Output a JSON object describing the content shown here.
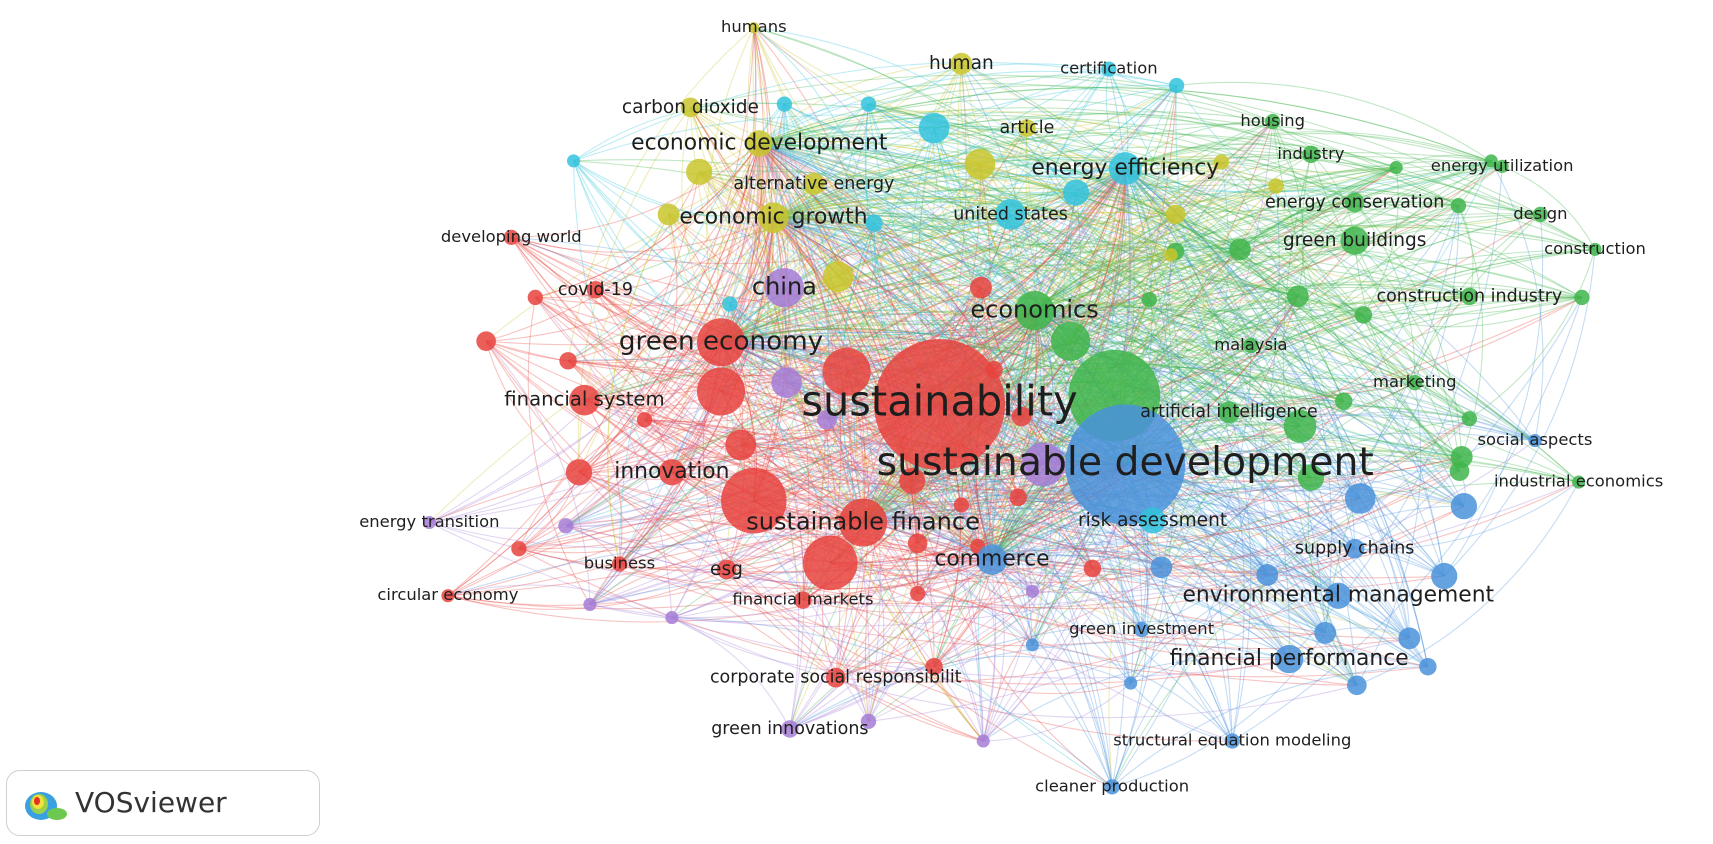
{
  "app": "VOSviewer",
  "nodes": [
    {
      "label": "humans",
      "color": "#c9c52b"
    },
    {
      "label": "human",
      "color": "#c9c52b"
    },
    {
      "label": "certification",
      "color": "#33c3dd"
    },
    {
      "label": "carbon dioxide",
      "color": "#c9c52b"
    },
    {
      "label": "economic development",
      "color": "#c9c52b"
    },
    {
      "label": "article",
      "color": "#c9c52b"
    },
    {
      "label": "housing",
      "color": "#3fb54b"
    },
    {
      "label": "industry",
      "color": "#3fb54b"
    },
    {
      "label": "energy efficiency",
      "color": "#33c3dd"
    },
    {
      "label": "energy utilization",
      "color": "#3fb54b"
    },
    {
      "label": "alternative energy",
      "color": "#c9c52b"
    },
    {
      "label": "united states",
      "color": "#33c3dd"
    },
    {
      "label": "energy conservation",
      "color": "#3fb54b"
    },
    {
      "label": "design",
      "color": "#3fb54b"
    },
    {
      "label": "economic growth",
      "color": "#c9c52b"
    },
    {
      "label": "developing world",
      "color": "#e8433e"
    },
    {
      "label": "green buildings",
      "color": "#3fb54b"
    },
    {
      "label": "construction",
      "color": "#3fb54b"
    },
    {
      "label": "covid-19",
      "color": "#e8433e"
    },
    {
      "label": "china",
      "color": "#a47dd6"
    },
    {
      "label": "construction industry",
      "color": "#3fb54b"
    },
    {
      "label": "economics",
      "color": "#3fb54b"
    },
    {
      "label": "green economy",
      "color": "#e8433e"
    },
    {
      "label": "malaysia",
      "color": "#3fb54b"
    },
    {
      "label": "marketing",
      "color": "#3fb54b"
    },
    {
      "label": "financial system",
      "color": "#e8433e"
    },
    {
      "label": "sustainability",
      "color": "#e8433e"
    },
    {
      "label": "artificial intelligence",
      "color": "#3fb54b"
    },
    {
      "label": "social aspects",
      "color": "#4a92db"
    },
    {
      "label": "sustainable development",
      "color": "#4a92db"
    },
    {
      "label": "innovation",
      "color": "#e8433e"
    },
    {
      "label": "industrial economics",
      "color": "#3fb54b"
    },
    {
      "label": "energy transition",
      "color": "#a47dd6"
    },
    {
      "label": "sustainable finance",
      "color": "#e8433e"
    },
    {
      "label": "risk assessment",
      "color": "#33c3dd"
    },
    {
      "label": "supply chains",
      "color": "#4a92db"
    },
    {
      "label": "business",
      "color": "#e8433e"
    },
    {
      "label": "esg",
      "color": "#e8433e"
    },
    {
      "label": "commerce",
      "color": "#4a92db"
    },
    {
      "label": "circular economy",
      "color": "#e8433e"
    },
    {
      "label": "financial markets",
      "color": "#e8433e"
    },
    {
      "label": "environmental management",
      "color": "#4a92db"
    },
    {
      "label": "green investment",
      "color": "#4a92db"
    },
    {
      "label": "financial performance",
      "color": "#4a92db"
    },
    {
      "label": "corporate social responsibilit",
      "color": "#e8433e"
    },
    {
      "label": "green innovations",
      "color": "#a47dd6"
    },
    {
      "label": "structural equation modeling",
      "color": "#4a92db"
    },
    {
      "label": "cleaner production",
      "color": "#4a92db"
    }
  ]
}
